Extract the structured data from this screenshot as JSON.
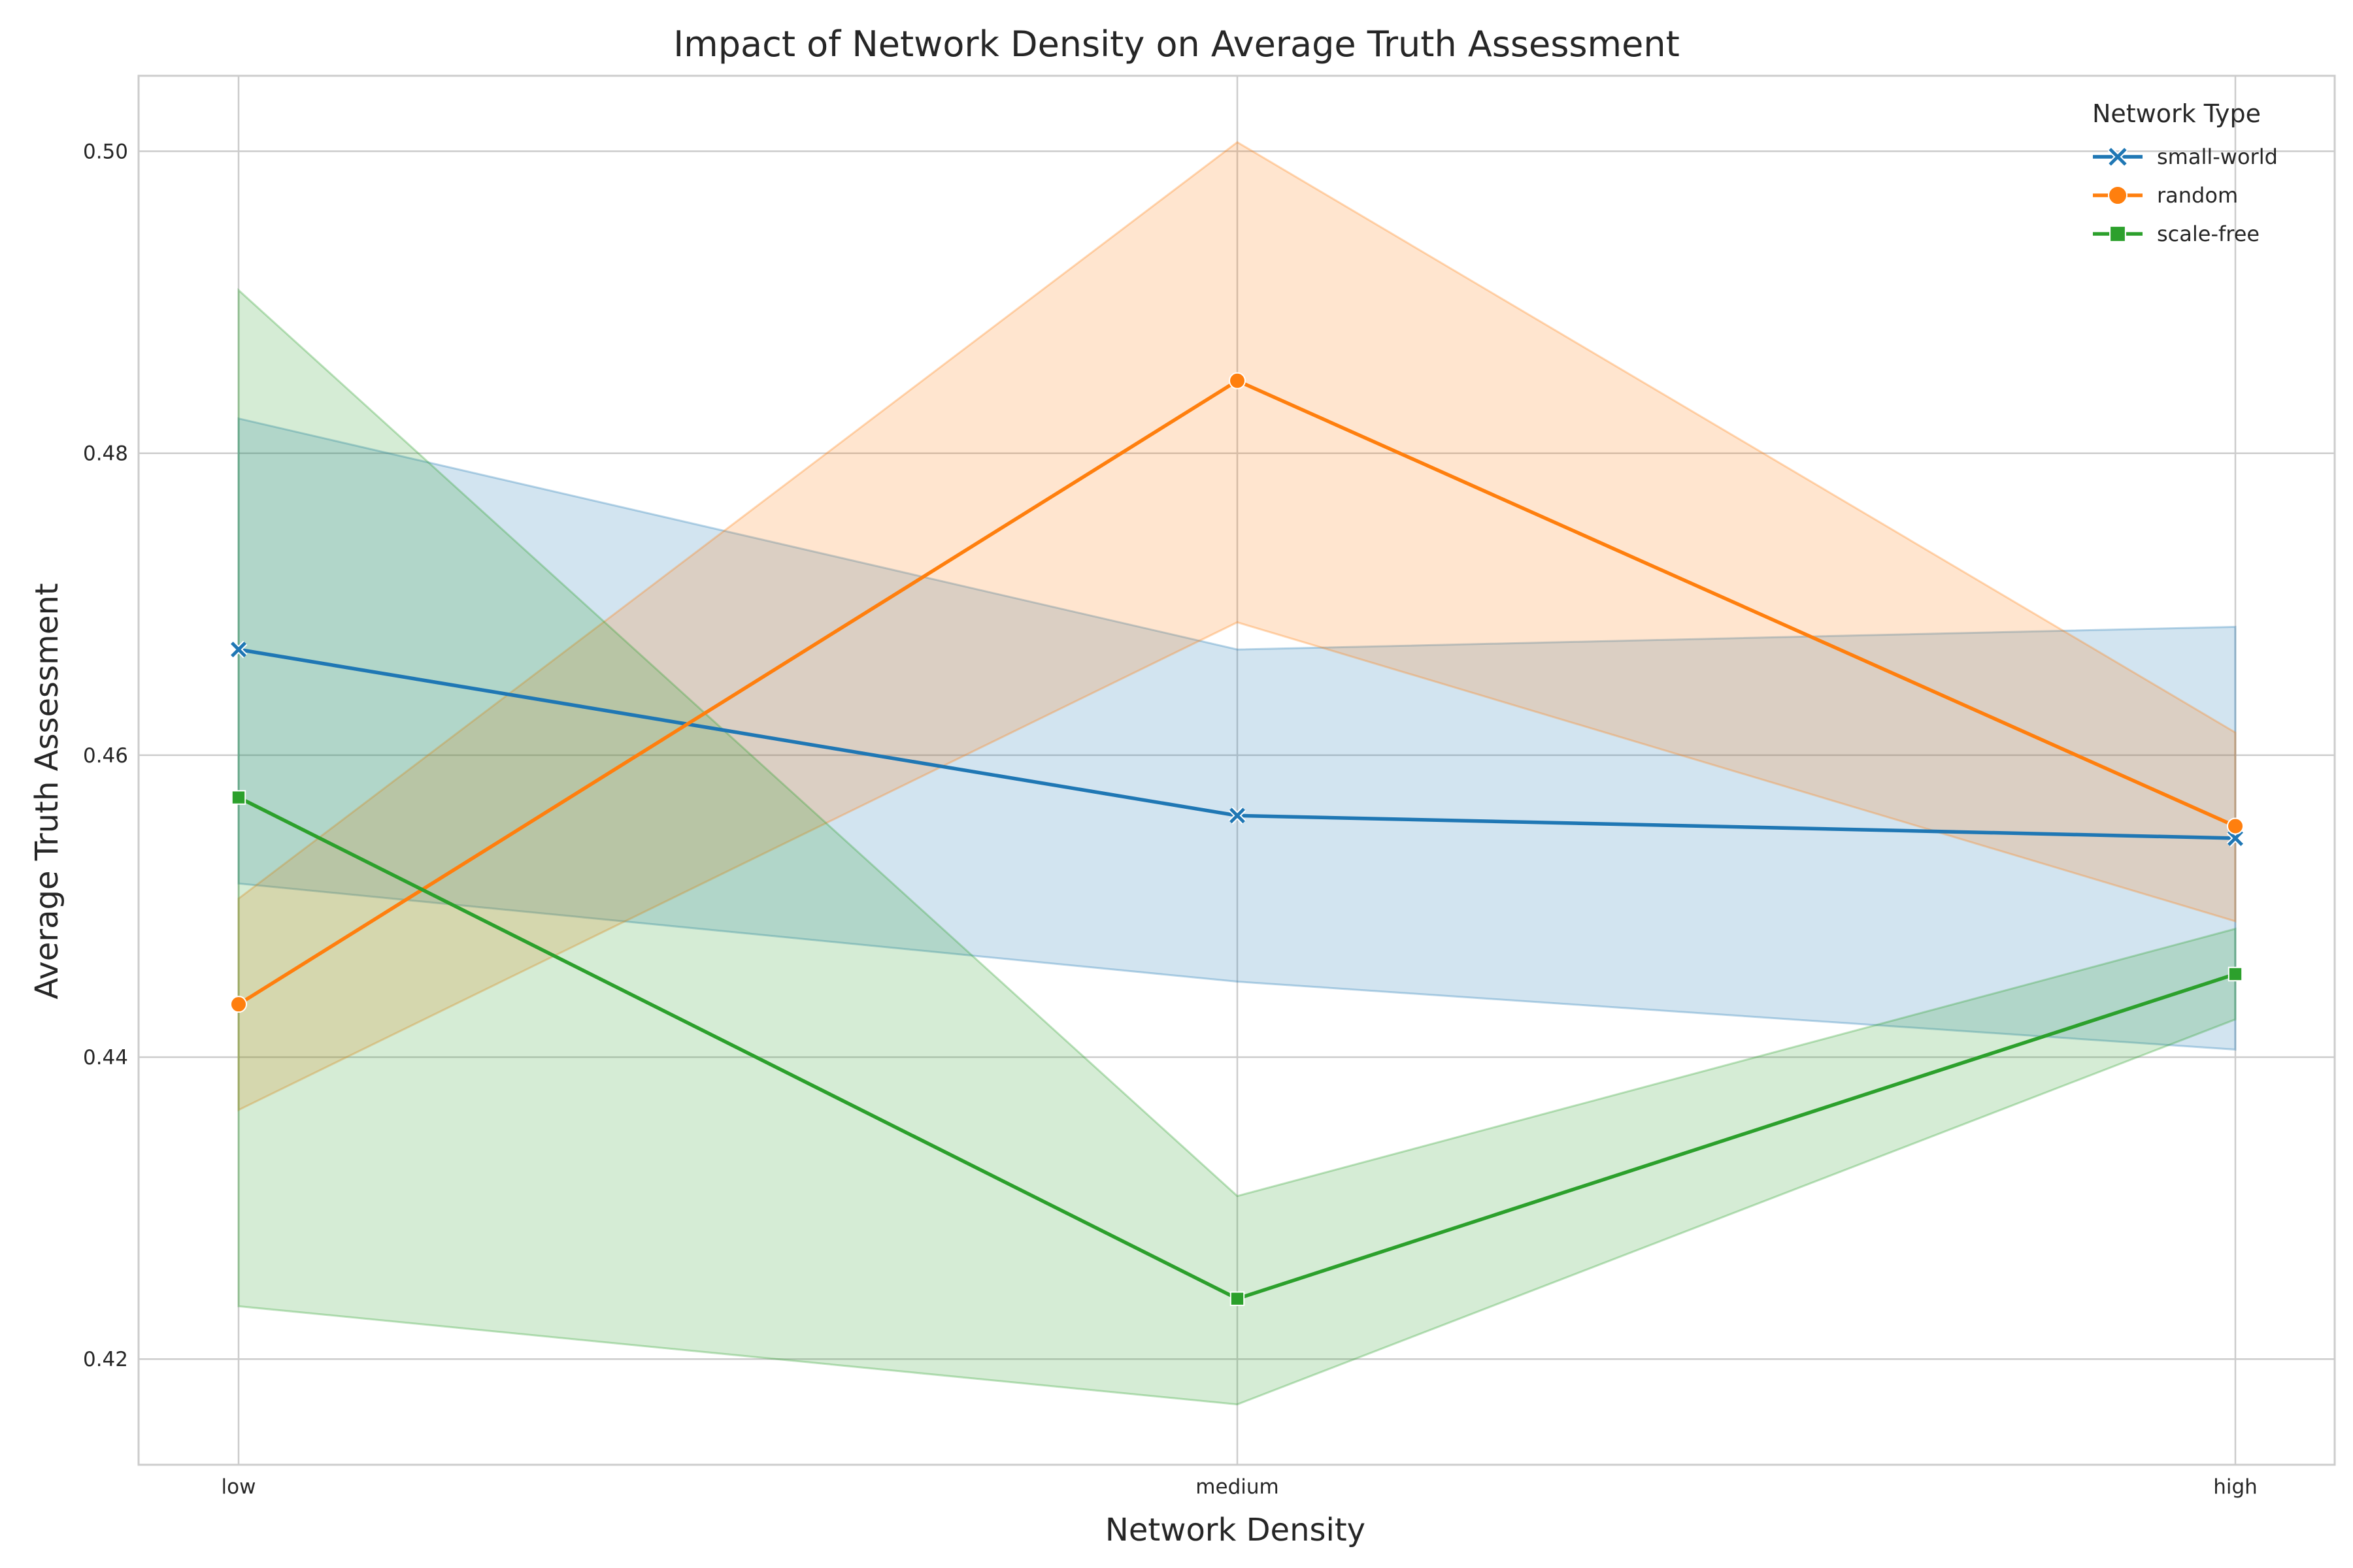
{
  "chart_data": {
    "type": "line",
    "title": "Impact of Network Density on Average Truth Assessment",
    "xlabel": "Network Density",
    "ylabel": "Average Truth Assessment",
    "categories": [
      "low",
      "medium",
      "high"
    ],
    "ylim": [
      0.413,
      0.505
    ],
    "yticks": [
      0.42,
      0.44,
      0.46,
      0.48,
      0.5
    ],
    "ytick_labels": [
      "0.42",
      "0.44",
      "0.46",
      "0.48",
      "0.50"
    ],
    "grid": true,
    "legend": {
      "title": "Network Type",
      "placement": "top-right"
    },
    "series": [
      {
        "name": "small-world",
        "color": "#1f77b4",
        "marker": "x",
        "values": [
          0.467,
          0.456,
          0.4545
        ],
        "ci_low": [
          0.4515,
          0.445,
          0.4405
        ],
        "ci_high": [
          0.4823,
          0.467,
          0.4685
        ]
      },
      {
        "name": "random",
        "color": "#ff7f0e",
        "marker": "circle",
        "values": [
          0.4435,
          0.4848,
          0.4553
        ],
        "ci_low": [
          0.4365,
          0.4688,
          0.449
        ],
        "ci_high": [
          0.4505,
          0.5006,
          0.4615
        ]
      },
      {
        "name": "scale-free",
        "color": "#2ca02c",
        "marker": "square",
        "values": [
          0.4572,
          0.424,
          0.4455
        ],
        "ci_low": [
          0.4235,
          0.417,
          0.4425
        ],
        "ci_high": [
          0.4908,
          0.4308,
          0.4485
        ]
      }
    ]
  }
}
